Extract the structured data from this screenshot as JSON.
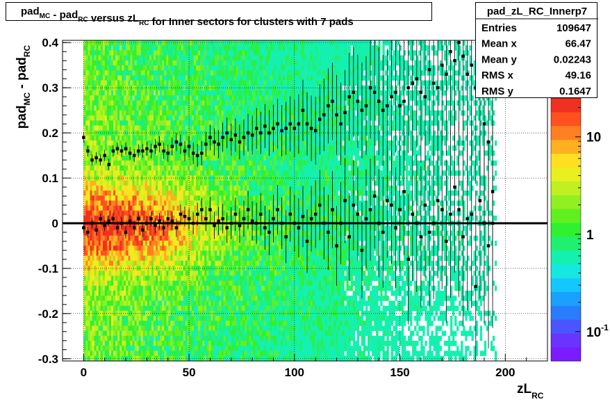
{
  "title": {
    "parts": [
      {
        "text": "pad",
        "sub": "MC"
      },
      {
        "text": " - pad",
        "sub": "RC"
      },
      {
        "text": " versus zL",
        "sub": "RC"
      },
      {
        "text": " for Inner sectors for clusters with 7 pads",
        "sub": ""
      }
    ]
  },
  "stats": {
    "name": "pad_zL_RC_Innerp7",
    "rows": [
      {
        "label": "Entries",
        "value": "109647"
      },
      {
        "label": "Mean x",
        "value": "66.47"
      },
      {
        "label": "Mean y",
        "value": "0.02243"
      },
      {
        "label": "RMS x",
        "value": "49.16"
      },
      {
        "label": "RMS y",
        "value": "0.1647"
      }
    ]
  },
  "colors": {
    "palette": [
      "#7a1cff",
      "#6a33ff",
      "#4a55ff",
      "#2a7cff",
      "#1aa0ff",
      "#14c8ff",
      "#14e8e0",
      "#14f0b0",
      "#20f070",
      "#30f030",
      "#60f020",
      "#90f020",
      "#c0f020",
      "#e8f020",
      "#ffe020",
      "#ffb020",
      "#ff8020",
      "#ff5020",
      "#f03020"
    ],
    "profile": "#000000",
    "zero_line": "#000000"
  },
  "chart_data": {
    "type": "heatmap",
    "xlabel": {
      "text": "zL",
      "sub": "RC"
    },
    "ylabel": {
      "text1": "pad",
      "sub1": "MC",
      "text2": " - pad",
      "sub2": "RC"
    },
    "xlim": [
      -10,
      220
    ],
    "ylim": [
      -0.305,
      0.405
    ],
    "x_ticks": [
      0,
      50,
      100,
      150,
      200
    ],
    "x_tick_labels": [
      "0",
      "50",
      "100",
      "150",
      "200"
    ],
    "y_ticks": [
      -0.3,
      -0.2,
      -0.1,
      0,
      0.1,
      0.2,
      0.3,
      0.4
    ],
    "y_tick_labels": [
      "-0.3",
      "-0.2",
      "-0.1",
      "0",
      "0.1",
      "0.2",
      "0.3",
      "0.4"
    ],
    "grid": true,
    "log_z": true,
    "colorbar": {
      "zlim": [
        0.05,
        25
      ],
      "ticks": [
        0.1,
        1,
        10
      ],
      "tick_labels": [
        {
          "base": "10",
          "exp": "-1"
        },
        {
          "base": "1",
          "exp": ""
        },
        {
          "base": "10",
          "exp": ""
        }
      ]
    },
    "zero_line": 0,
    "upper_band": {
      "name": "profile-upper",
      "points": [
        [
          0,
          0.19
        ],
        [
          2,
          0.16
        ],
        [
          4,
          0.14
        ],
        [
          6,
          0.145
        ],
        [
          8,
          0.14
        ],
        [
          10,
          0.15
        ],
        [
          12,
          0.13
        ],
        [
          14,
          0.16
        ],
        [
          16,
          0.165
        ],
        [
          18,
          0.16
        ],
        [
          20,
          0.165
        ],
        [
          22,
          0.155
        ],
        [
          24,
          0.15
        ],
        [
          26,
          0.16
        ],
        [
          28,
          0.16
        ],
        [
          30,
          0.165
        ],
        [
          32,
          0.16
        ],
        [
          34,
          0.17
        ],
        [
          36,
          0.175
        ],
        [
          38,
          0.16
        ],
        [
          40,
          0.155
        ],
        [
          42,
          0.17
        ],
        [
          44,
          0.18
        ],
        [
          46,
          0.175
        ],
        [
          48,
          0.16
        ],
        [
          50,
          0.17
        ],
        [
          52,
          0.155
        ],
        [
          54,
          0.15
        ],
        [
          56,
          0.155
        ],
        [
          58,
          0.175
        ],
        [
          60,
          0.19
        ],
        [
          62,
          0.18
        ],
        [
          64,
          0.175
        ],
        [
          66,
          0.19
        ],
        [
          68,
          0.2
        ],
        [
          70,
          0.185
        ],
        [
          72,
          0.195
        ],
        [
          74,
          0.18
        ],
        [
          76,
          0.19
        ],
        [
          78,
          0.2
        ],
        [
          80,
          0.195
        ],
        [
          82,
          0.21
        ],
        [
          84,
          0.2
        ],
        [
          86,
          0.215
        ],
        [
          88,
          0.2
        ],
        [
          90,
          0.21
        ],
        [
          92,
          0.22
        ],
        [
          94,
          0.205
        ],
        [
          96,
          0.21
        ],
        [
          98,
          0.22
        ],
        [
          100,
          0.21
        ],
        [
          102,
          0.22
        ],
        [
          104,
          0.25
        ],
        [
          106,
          0.22
        ],
        [
          108,
          0.21
        ],
        [
          110,
          0.205
        ],
        [
          112,
          0.23
        ],
        [
          114,
          0.24
        ],
        [
          116,
          0.26
        ],
        [
          118,
          0.27
        ],
        [
          120,
          0.24
        ],
        [
          122,
          0.22
        ],
        [
          124,
          0.245
        ],
        [
          126,
          0.28
        ],
        [
          128,
          0.29
        ],
        [
          130,
          0.27
        ],
        [
          132,
          0.25
        ],
        [
          134,
          0.26
        ],
        [
          136,
          0.3
        ],
        [
          138,
          0.29
        ],
        [
          140,
          0.27
        ],
        [
          142,
          0.25
        ],
        [
          144,
          0.26
        ],
        [
          146,
          0.28
        ],
        [
          148,
          0.29
        ],
        [
          150,
          0.26
        ],
        [
          152,
          0.27
        ],
        [
          154,
          0.3
        ],
        [
          156,
          0.31
        ],
        [
          158,
          0.32
        ],
        [
          160,
          0.29
        ],
        [
          162,
          0.28
        ],
        [
          164,
          0.34
        ],
        [
          166,
          0.31
        ],
        [
          168,
          0.3
        ],
        [
          170,
          0.35
        ],
        [
          172,
          0.33
        ],
        [
          174,
          0.38
        ],
        [
          176,
          0.36
        ],
        [
          178,
          0.4
        ],
        [
          180,
          0.37
        ],
        [
          182,
          0.33
        ],
        [
          184,
          0.35
        ],
        [
          186,
          0.3
        ],
        [
          188,
          0.29
        ],
        [
          190,
          0.22
        ],
        [
          192,
          0.18
        ],
        [
          194,
          0.07
        ]
      ]
    },
    "lower_band": {
      "name": "profile-lower",
      "points": [
        [
          0,
          -0.01
        ],
        [
          2,
          -0.02
        ],
        [
          4,
          0
        ],
        [
          6,
          -0.015
        ],
        [
          8,
          0.01
        ],
        [
          10,
          -0.005
        ],
        [
          12,
          0.005
        ],
        [
          14,
          0.01
        ],
        [
          16,
          -0.01
        ],
        [
          18,
          0
        ],
        [
          20,
          -0.02
        ],
        [
          22,
          0.005
        ],
        [
          24,
          -0.01
        ],
        [
          26,
          0.01
        ],
        [
          28,
          -0.015
        ],
        [
          30,
          0
        ],
        [
          32,
          0.01
        ],
        [
          34,
          -0.005
        ],
        [
          36,
          0.005
        ],
        [
          38,
          -0.01
        ],
        [
          40,
          0.01
        ],
        [
          42,
          0.005
        ],
        [
          44,
          -0.01
        ],
        [
          46,
          0.02
        ],
        [
          48,
          0.015
        ],
        [
          50,
          0.01
        ],
        [
          52,
          0.0
        ],
        [
          54,
          0.02
        ],
        [
          56,
          0.03
        ],
        [
          58,
          0.01
        ],
        [
          60,
          0.03
        ],
        [
          62,
          -0.005
        ],
        [
          64,
          0.005
        ],
        [
          66,
          0.01
        ],
        [
          68,
          -0.01
        ],
        [
          70,
          0.0
        ],
        [
          72,
          0.02
        ],
        [
          74,
          -0.005
        ],
        [
          76,
          0.01
        ],
        [
          78,
          0.03
        ],
        [
          80,
          0.005
        ],
        [
          82,
          0.0
        ],
        [
          84,
          0.02
        ],
        [
          86,
          -0.01
        ],
        [
          88,
          -0.02
        ],
        [
          90,
          0.01
        ],
        [
          92,
          0.03
        ],
        [
          94,
          0.0
        ],
        [
          96,
          -0.03
        ],
        [
          98,
          0.02
        ],
        [
          100,
          0.0
        ],
        [
          102,
          -0.01
        ],
        [
          104,
          0.015
        ],
        [
          106,
          -0.04
        ],
        [
          108,
          0.01
        ],
        [
          110,
          0.02
        ],
        [
          112,
          0.04
        ],
        [
          114,
          0.0
        ],
        [
          116,
          -0.02
        ],
        [
          118,
          0.03
        ],
        [
          120,
          -0.05
        ],
        [
          122,
          0.0
        ],
        [
          124,
          0.05
        ],
        [
          126,
          -0.03
        ],
        [
          128,
          0.04
        ],
        [
          130,
          0.02
        ],
        [
          132,
          -0.06
        ],
        [
          134,
          0.01
        ],
        [
          136,
          0.03
        ],
        [
          138,
          0.06
        ],
        [
          140,
          0.0
        ],
        [
          142,
          -0.02
        ],
        [
          144,
          0.05
        ],
        [
          146,
          0.04
        ],
        [
          148,
          -0.01
        ],
        [
          150,
          0.03
        ],
        [
          152,
          0.07
        ],
        [
          154,
          -0.08
        ],
        [
          156,
          0.02
        ],
        [
          158,
          0.0
        ],
        [
          160,
          -0.03
        ],
        [
          162,
          0.04
        ],
        [
          164,
          -0.02
        ],
        [
          166,
          0.0
        ],
        [
          168,
          0.05
        ],
        [
          170,
          0.03
        ],
        [
          172,
          -0.04
        ],
        [
          174,
          0.02
        ],
        [
          176,
          0.08
        ],
        [
          178,
          0.03
        ],
        [
          180,
          -0.03
        ],
        [
          182,
          0.01
        ],
        [
          184,
          0.02
        ],
        [
          186,
          -0.14
        ],
        [
          188,
          0.05
        ],
        [
          190,
          0.0
        ],
        [
          192,
          -0.05
        ],
        [
          194,
          0.0
        ]
      ]
    }
  }
}
